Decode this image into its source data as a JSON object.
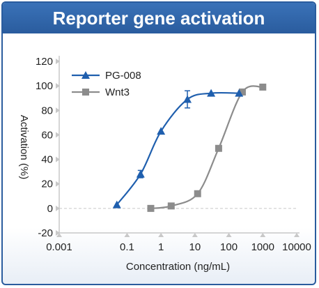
{
  "chart_data": {
    "type": "scatter",
    "title": "Reporter gene activation",
    "xlabel": "Concentration (ng/mL)",
    "ylabel": "Activation (%)",
    "x_scale": "log",
    "xlim": [
      0.001,
      10000
    ],
    "ylim": [
      -20,
      120
    ],
    "x_ticks": [
      0.001,
      0.1,
      1,
      10,
      100,
      1000,
      10000
    ],
    "x_tick_labels": [
      "0.001",
      "0.1",
      "1",
      "10",
      "100",
      "1000",
      "10000"
    ],
    "y_ticks": [
      -20,
      0,
      20,
      40,
      60,
      80,
      100,
      120
    ],
    "y_tick_labels": [
      "-20",
      "0",
      "20",
      "40",
      "60",
      "80",
      "100",
      "120"
    ],
    "reference_line_y": 0,
    "legend_position": "top-left",
    "series": [
      {
        "name": "PG-008",
        "color": "#1f5fae",
        "marker": "triangle",
        "x": [
          0.05,
          0.25,
          1,
          6,
          30,
          200
        ],
        "y": [
          3,
          28,
          63,
          89,
          94,
          94
        ],
        "error": [
          0,
          3,
          0,
          7,
          0,
          0
        ]
      },
      {
        "name": "Wnt3",
        "color": "#8c8c8c",
        "marker": "square",
        "x": [
          0.5,
          2,
          12,
          50,
          250,
          1000
        ],
        "y": [
          0,
          2,
          12,
          49,
          95,
          99
        ],
        "error": [
          0,
          0,
          0,
          0,
          0,
          0
        ]
      }
    ]
  }
}
